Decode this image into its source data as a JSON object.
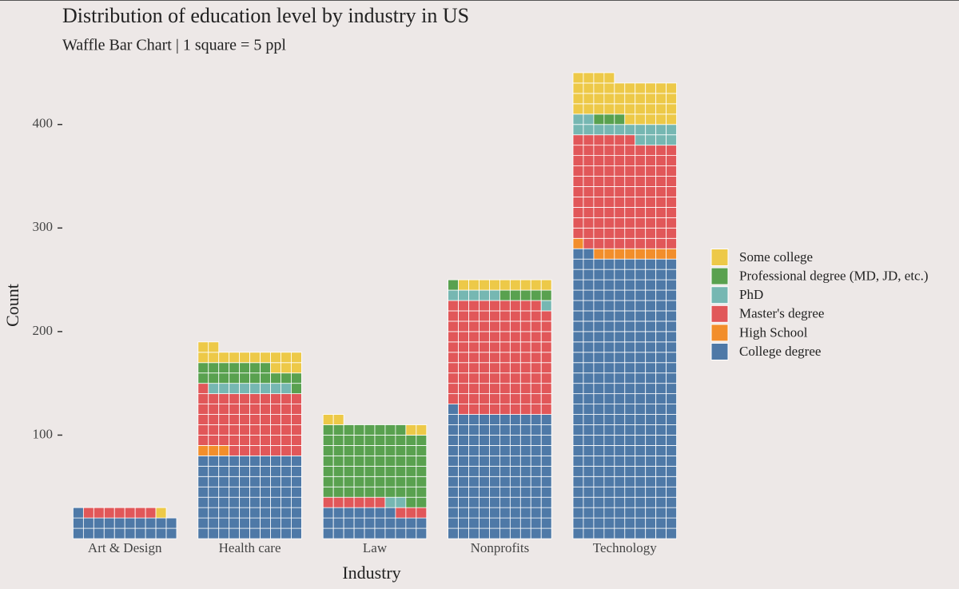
{
  "chart_data": {
    "type": "waffle-bar",
    "title": "Distribution of education level by industry in US",
    "subtitle": "Waffle Bar Chart | 1 square = 5 ppl",
    "x_label": "Industry",
    "y_label": "Count",
    "categories": [
      "Art & Design",
      "Health care",
      "Law",
      "Nonprofits",
      "Technology"
    ],
    "series": [
      {
        "name": "College degree",
        "color": "#4e79a7",
        "values": [
          21,
          80,
          27,
          121,
          272
        ]
      },
      {
        "name": "High School",
        "color": "#f28e2b",
        "values": [
          0,
          3,
          0,
          0,
          9
        ]
      },
      {
        "name": "Master's degree",
        "color": "#e15759",
        "values": [
          7,
          58,
          9,
          108,
          105
        ]
      },
      {
        "name": "PhD",
        "color": "#76b7b2",
        "values": [
          0,
          8,
          2,
          6,
          16
        ]
      },
      {
        "name": "Professional degree (MD, JD, etc.)",
        "color": "#59a14f",
        "values": [
          0,
          18,
          70,
          6,
          3
        ]
      },
      {
        "name": "Some college",
        "color": "#edc948",
        "values": [
          1,
          15,
          4,
          9,
          39
        ]
      }
    ],
    "ylim": [
      -5,
      460
    ],
    "yticks": [
      100,
      200,
      300,
      400
    ]
  }
}
